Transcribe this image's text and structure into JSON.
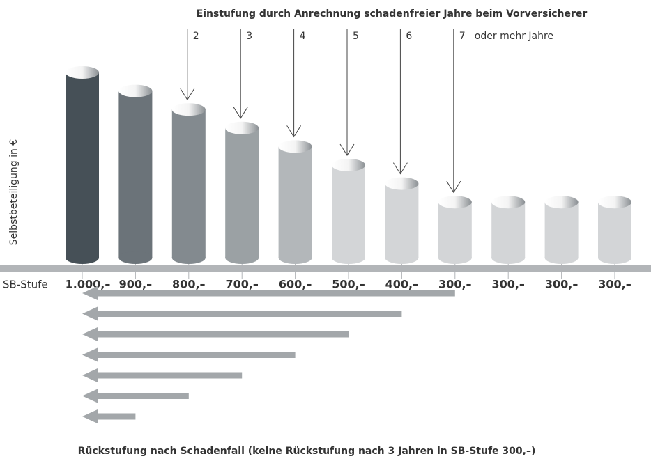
{
  "chart_data": {
    "type": "cylinder",
    "subtitle": "Einstufung durch Anrechnung schadenfreier Jahre beim Vorversicherer",
    "y_label": "Selbstbeteiligung in €",
    "x_label": "SB-Stufe",
    "values": [
      1000,
      900,
      800,
      700,
      600,
      500,
      400,
      300,
      300,
      300,
      300
    ],
    "value_labels": [
      "1.000,–",
      "900,–",
      "800,–",
      "700,–",
      "600,–",
      "500,–",
      "400,–",
      "300,–",
      "300,–",
      "300,–",
      "300,–"
    ],
    "colors": [
      "#465057",
      "#6b7379",
      "#838a8f",
      "#9ba1a4",
      "#b3b7ba",
      "#d3d5d7",
      "#d3d5d7",
      "#d3d5d7",
      "#d3d5d7",
      "#d3d5d7",
      "#d3d5d7"
    ],
    "arrow_labels": [
      "2",
      "3",
      "4",
      "5",
      "6",
      "7"
    ],
    "arrow_suffix": "oder mehr Jahre",
    "caption": "Rückstufung nach Schadenfall (keine Rückstufung nach 3 Jahren in SB-Stufe 300,–)"
  }
}
